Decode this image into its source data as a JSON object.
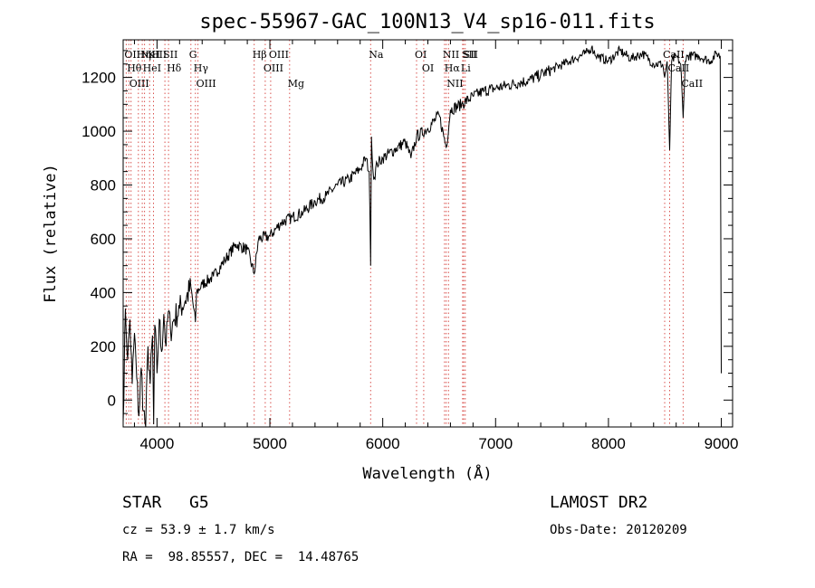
{
  "chart_data": {
    "type": "line",
    "title": "spec-55967-GAC_100N13_V4_sp16-011.fits",
    "xlabel": "Wavelength (Å)",
    "ylabel": "Flux (relative)",
    "xlim": [
      3700,
      9100
    ],
    "ylim": [
      -100,
      1340
    ],
    "x_ticks": [
      4000,
      5000,
      6000,
      7000,
      8000,
      9000
    ],
    "y_ticks": [
      0,
      200,
      400,
      600,
      800,
      1000,
      1200
    ],
    "grid": false,
    "series": [
      {
        "x": [
          3700,
          3720,
          3740,
          3760,
          3780,
          3800,
          3820,
          3840,
          3860,
          3880,
          3900,
          3920,
          3940,
          3960,
          3970,
          3980,
          4000,
          4020,
          4040,
          4060,
          4080,
          4100,
          4120,
          4150,
          4200,
          4250,
          4300,
          4340,
          4350,
          4400,
          4500,
          4600,
          4700,
          4800,
          4861,
          4900,
          5000,
          5100,
          5200,
          5300,
          5400,
          5500,
          5600,
          5700,
          5800,
          5850,
          5880,
          5893,
          5900,
          5920,
          5950,
          6000,
          6100,
          6200,
          6250,
          6300,
          6400,
          6500,
          6563,
          6600,
          6700,
          6800,
          6900,
          7000,
          7100,
          7200,
          7300,
          7400,
          7500,
          7600,
          7700,
          7800,
          7850,
          7900,
          8000,
          8100,
          8200,
          8300,
          8400,
          8480,
          8498,
          8520,
          8542,
          8560,
          8600,
          8640,
          8662,
          8680,
          8700,
          8800,
          8900,
          8960,
          8990,
          9000
        ],
        "y": [
          -80,
          340,
          150,
          300,
          60,
          250,
          80,
          -60,
          120,
          -40,
          -100,
          200,
          60,
          240,
          -90,
          280,
          100,
          300,
          180,
          320,
          200,
          330,
          260,
          300,
          340,
          370,
          420,
          290,
          400,
          430,
          460,
          520,
          580,
          560,
          470,
          600,
          610,
          660,
          680,
          700,
          740,
          760,
          800,
          820,
          860,
          900,
          850,
          500,
          980,
          820,
          880,
          900,
          930,
          960,
          900,
          980,
          1010,
          1060,
          940,
          1080,
          1100,
          1130,
          1150,
          1160,
          1170,
          1180,
          1190,
          1210,
          1230,
          1250,
          1270,
          1290,
          1310,
          1280,
          1260,
          1300,
          1270,
          1290,
          1250,
          1250,
          1200,
          1260,
          930,
          1260,
          1280,
          1250,
          1050,
          1260,
          1280,
          1280,
          1260,
          1290,
          1280,
          100
        ]
      }
    ],
    "line_markers": [
      {
        "wavelength": 3727,
        "label": "OII"
      },
      {
        "wavelength": 3750,
        "label": "Hθ"
      },
      {
        "wavelength": 3770,
        "label": "OIII"
      },
      {
        "wavelength": 3835,
        "label": "Hη"
      },
      {
        "wavelength": 3869,
        "label": "NeIII"
      },
      {
        "wavelength": 3889,
        "label": "HeI"
      },
      {
        "wavelength": 3934,
        "label": "K"
      },
      {
        "wavelength": 3969,
        "label": "H"
      },
      {
        "wavelength": 4070,
        "label": "SII"
      },
      {
        "wavelength": 4102,
        "label": "Hδ"
      },
      {
        "wavelength": 4300,
        "label": "G"
      },
      {
        "wavelength": 4340,
        "label": "Hγ"
      },
      {
        "wavelength": 4363,
        "label": "OIII"
      },
      {
        "wavelength": 4861,
        "label": "Hβ"
      },
      {
        "wavelength": 4959,
        "label": "OIII"
      },
      {
        "wavelength": 5007,
        "label": "OIII"
      },
      {
        "wavelength": 5175,
        "label": "Mg"
      },
      {
        "wavelength": 5893,
        "label": "Na"
      },
      {
        "wavelength": 6300,
        "label": "OI"
      },
      {
        "wavelength": 6363,
        "label": "OI"
      },
      {
        "wavelength": 6548,
        "label": "NII"
      },
      {
        "wavelength": 6563,
        "label": "Hα"
      },
      {
        "wavelength": 6583,
        "label": "NII"
      },
      {
        "wavelength": 6708,
        "label": "Li"
      },
      {
        "wavelength": 6717,
        "label": "SII"
      },
      {
        "wavelength": 6731,
        "label": "SII"
      },
      {
        "wavelength": 8498,
        "label": "CaII"
      },
      {
        "wavelength": 8542,
        "label": "CaII"
      },
      {
        "wavelength": 8662,
        "label": "CaII"
      }
    ],
    "line_color": "#000000",
    "marker_color": "#d9534f"
  },
  "info": {
    "object_class": "STAR",
    "subclass": "G5",
    "survey": "LAMOST DR2",
    "cz": "cz = 53.9 ± 1.7 km/s",
    "obs_date": "Obs-Date: 20120209",
    "coords": "RA =  98.85557, DEC =  14.48765"
  }
}
